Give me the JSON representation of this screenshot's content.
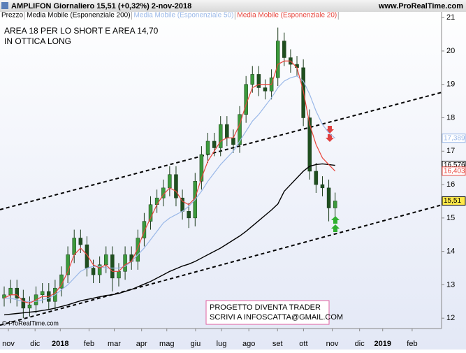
{
  "header": {
    "title": "AMPLIFON  Giornaliero  15,51 (+0,32%)  2-nov-2018",
    "site": "www.ProRealTime.com"
  },
  "chart_data": {
    "type": "candlestick",
    "x": [
      0,
      1,
      2,
      3,
      4,
      5,
      6,
      7,
      8,
      9,
      10,
      11,
      12,
      13,
      14,
      15,
      16,
      17,
      18,
      19,
      20,
      21,
      22,
      23,
      24,
      25,
      26,
      27,
      28,
      29,
      30,
      31,
      32,
      33,
      34,
      35,
      36,
      37,
      38,
      39,
      40,
      41,
      42,
      43,
      44,
      45,
      46,
      47,
      48,
      49,
      50,
      51,
      52
    ],
    "xlim": [
      -0.66,
      68.72
    ],
    "xticks": [
      {
        "value": 0.66,
        "label": "nov"
      },
      {
        "value": 4.85,
        "label": "dic"
      },
      {
        "value": 8.81,
        "label": "2018"
      },
      {
        "value": 13.33,
        "label": "feb"
      },
      {
        "value": 17.29,
        "label": "mar"
      },
      {
        "value": 21.59,
        "label": "apr"
      },
      {
        "value": 25.55,
        "label": "mag"
      },
      {
        "value": 30.07,
        "label": "giu"
      },
      {
        "value": 34.14,
        "label": "lug"
      },
      {
        "value": 38.44,
        "label": "ago"
      },
      {
        "value": 42.95,
        "label": "set"
      },
      {
        "value": 47.03,
        "label": "ott"
      },
      {
        "value": 51.54,
        "label": "nov"
      },
      {
        "value": 55.84,
        "label": "dic"
      },
      {
        "value": 59.47,
        "label": "2019"
      },
      {
        "value": 64.1,
        "label": "feb"
      }
    ],
    "ylim": [
      11.69,
      21.15
    ],
    "yticks": [
      12,
      13,
      14,
      15,
      16,
      17,
      18,
      19,
      20,
      21
    ],
    "price": {
      "name": "Prezzo",
      "up_color": "#3c9a3c",
      "down_color": "#1f4f1f",
      "last_label": "15,51",
      "open": [
        12.6,
        12.7,
        12.9,
        12.6,
        12.3,
        12.4,
        12.7,
        12.8,
        12.5,
        12.9,
        13.3,
        13.9,
        14.4,
        14.2,
        13.5,
        13.3,
        13.6,
        13.9,
        13.2,
        13.4,
        13.9,
        13.7,
        14.4,
        14.9,
        15.4,
        15.6,
        15.9,
        16.3,
        15.6,
        15.2,
        15.0,
        16.1,
        16.9,
        17.3,
        17.1,
        17.8,
        17.4,
        17.2,
        18.1,
        19.0,
        19.3,
        18.9,
        18.8,
        19.2,
        20.3,
        19.8,
        19.6,
        19.5,
        18.0,
        16.4,
        16.0,
        15.9,
        15.3
      ],
      "high": [
        12.95,
        13.15,
        13.15,
        12.85,
        12.65,
        12.95,
        13.05,
        13.05,
        13.15,
        13.55,
        14.15,
        14.65,
        14.65,
        14.45,
        13.75,
        13.85,
        14.15,
        14.15,
        13.65,
        14.15,
        14.15,
        14.65,
        15.15,
        15.65,
        15.85,
        16.15,
        16.55,
        16.55,
        15.85,
        15.45,
        16.35,
        17.15,
        17.55,
        17.55,
        18.05,
        18.05,
        17.65,
        18.35,
        19.25,
        19.55,
        19.55,
        19.15,
        19.45,
        20.7,
        20.55,
        20.05,
        19.85,
        19.75,
        18.25,
        16.65,
        16.25,
        16.15,
        15.76
      ],
      "low": [
        12.35,
        12.45,
        12.35,
        12.0,
        12.05,
        12.15,
        12.45,
        12.25,
        12.25,
        12.65,
        13.05,
        13.65,
        13.95,
        13.25,
        13.05,
        13.05,
        13.35,
        12.8,
        12.95,
        13.15,
        13.45,
        13.45,
        14.15,
        14.65,
        15.15,
        15.35,
        15.65,
        15.35,
        14.95,
        14.7,
        14.75,
        15.85,
        16.65,
        16.85,
        16.85,
        17.15,
        16.95,
        16.95,
        17.85,
        18.75,
        18.65,
        18.55,
        18.55,
        18.95,
        19.55,
        19.35,
        19.25,
        17.75,
        16.15,
        15.75,
        15.65,
        14.9,
        15.05
      ],
      "close": [
        12.7,
        12.9,
        12.6,
        12.3,
        12.4,
        12.7,
        12.8,
        12.5,
        12.9,
        13.3,
        13.9,
        14.4,
        14.2,
        13.5,
        13.3,
        13.6,
        13.9,
        13.2,
        13.4,
        13.9,
        13.7,
        14.4,
        14.9,
        15.4,
        15.6,
        15.9,
        16.3,
        15.6,
        15.2,
        15.0,
        16.1,
        16.9,
        17.3,
        17.1,
        17.8,
        17.4,
        17.2,
        18.1,
        19.0,
        19.3,
        18.9,
        18.8,
        19.2,
        20.3,
        19.8,
        19.6,
        19.5,
        18.0,
        16.4,
        16.0,
        15.9,
        15.3,
        15.51
      ]
    },
    "series": [
      {
        "name": "Media Mobile (Esponenziale 200)",
        "color": "#000000",
        "last_label": "16,576",
        "values": [
          12.1,
          12.12,
          12.14,
          12.16,
          12.18,
          12.2,
          12.23,
          12.26,
          12.3,
          12.35,
          12.4,
          12.46,
          12.52,
          12.56,
          12.6,
          12.64,
          12.68,
          12.7,
          12.74,
          12.8,
          12.86,
          12.94,
          13.02,
          13.1,
          13.2,
          13.3,
          13.4,
          13.48,
          13.56,
          13.62,
          13.7,
          13.8,
          13.9,
          14.0,
          14.1,
          14.22,
          14.34,
          14.46,
          14.6,
          14.76,
          14.92,
          15.08,
          15.24,
          15.42,
          15.8,
          16.0,
          16.2,
          16.4,
          16.55,
          16.6,
          16.62,
          16.6,
          16.576
        ]
      },
      {
        "name": "Media Mobile (Esponenziale 50)",
        "color": "#9ab8e8",
        "last_label": "17,389",
        "values": [
          12.6,
          12.6,
          12.55,
          12.5,
          12.5,
          12.5,
          12.55,
          12.6,
          12.7,
          12.85,
          13.0,
          13.2,
          13.4,
          13.5,
          13.55,
          13.55,
          13.5,
          13.5,
          13.5,
          13.55,
          13.7,
          13.9,
          14.1,
          14.35,
          14.6,
          14.85,
          15.0,
          15.1,
          15.2,
          15.35,
          15.55,
          15.8,
          16.1,
          16.35,
          16.6,
          16.8,
          17.0,
          17.3,
          17.6,
          17.9,
          18.1,
          18.35,
          18.6,
          18.9,
          19.1,
          19.2,
          19.25,
          19.1,
          18.7,
          18.2,
          17.8,
          17.55,
          17.389
        ]
      },
      {
        "name": "Media Mobile (Esponenziale 20)",
        "color": "#e8453c",
        "last_label": "16,403",
        "values": [
          12.6,
          12.7,
          12.7,
          12.5,
          12.45,
          12.55,
          12.65,
          12.65,
          12.75,
          13.0,
          13.4,
          13.9,
          14.1,
          13.9,
          13.6,
          13.5,
          13.6,
          13.4,
          13.4,
          13.6,
          13.7,
          14.1,
          14.6,
          15.0,
          15.4,
          15.7,
          15.9,
          15.8,
          15.5,
          15.4,
          15.6,
          16.2,
          16.7,
          17.0,
          17.3,
          17.4,
          17.4,
          17.8,
          18.4,
          18.9,
          19.0,
          19.0,
          19.0,
          19.6,
          19.7,
          19.7,
          19.5,
          18.8,
          17.8,
          17.2,
          16.8,
          16.6,
          16.403
        ]
      }
    ],
    "trendlines": [
      {
        "x": [
          -0.66,
          68.72
        ],
        "y": [
          15.25,
          18.76
        ]
      },
      {
        "x": [
          -0.66,
          68.72
        ],
        "y": [
          11.79,
          15.39
        ]
      }
    ],
    "annotations": [
      "AREA 18 PER LO SHORT E AREA 14,70",
      "IN OTTICA LONG"
    ],
    "box_text": [
      "PROGETTO DIVENTA TRADER",
      "SCRIVI A INFOSCATTA@GMAIL.COM"
    ],
    "copyright": "© ProRealTime.com"
  }
}
